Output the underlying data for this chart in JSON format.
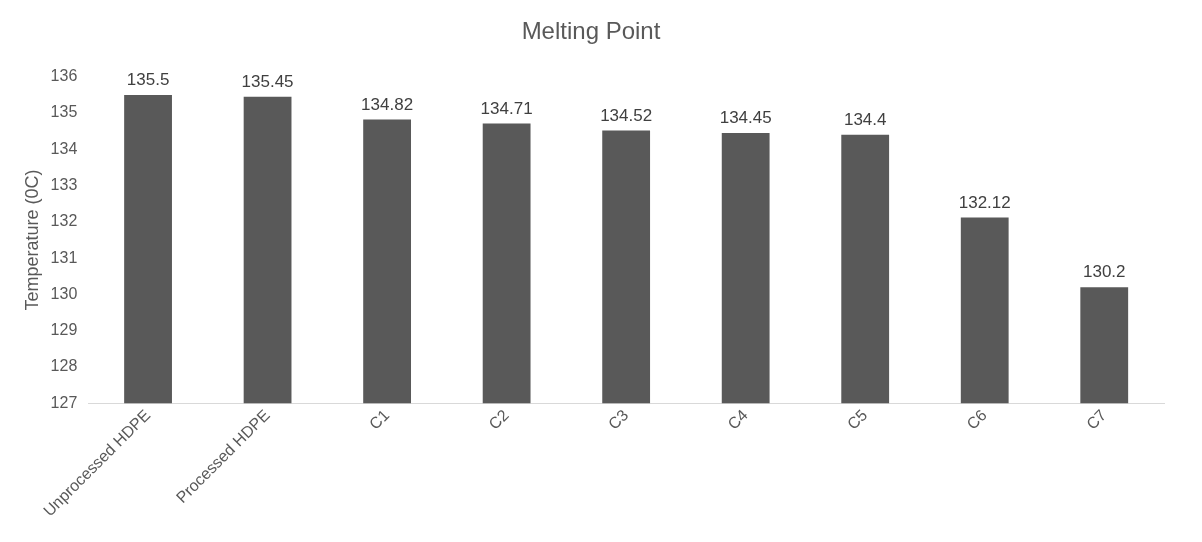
{
  "chart_data": {
    "type": "bar",
    "title": "Melting Point",
    "ylabel": "Temperature (0C)",
    "categories": [
      "Unprocessed HDPE",
      "Processed HDPE",
      "C1",
      "C2",
      "C3",
      "C4",
      "C5",
      "C6",
      "C7"
    ],
    "values": [
      135.5,
      135.45,
      134.82,
      134.71,
      134.52,
      134.45,
      134.4,
      132.12,
      130.2
    ],
    "color": "#595959",
    "ylim": [
      127,
      136
    ],
    "yticks": [
      127,
      128,
      129,
      130,
      131,
      132,
      133,
      134,
      135,
      136
    ],
    "grid": false,
    "data_labels": true
  }
}
